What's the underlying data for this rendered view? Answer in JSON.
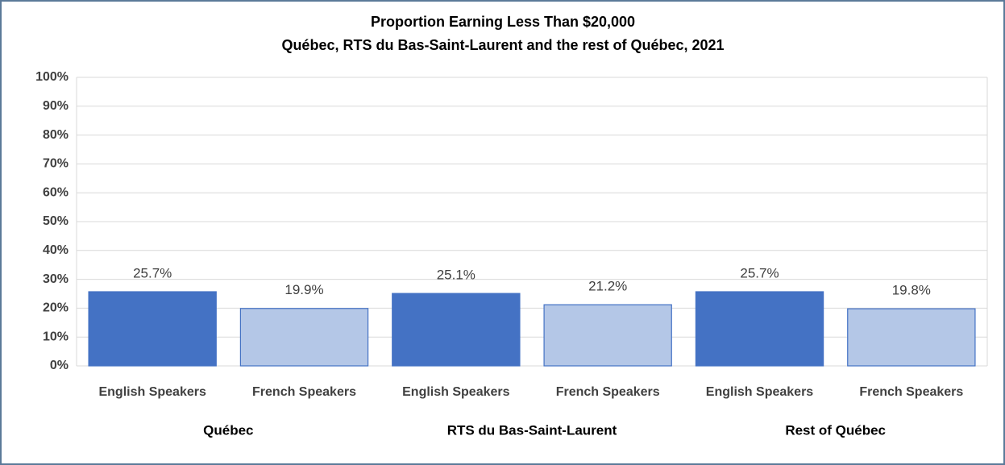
{
  "chart_data": {
    "type": "bar",
    "title": "Proportion Earning Less Than $20,000",
    "subtitle": "Québec, RTS du Bas-Saint-Laurent and the rest of Québec, 2021",
    "categories": [
      "English Speakers",
      "French Speakers",
      "English Speakers",
      "French Speakers",
      "English Speakers",
      "French Speakers"
    ],
    "groups": [
      "Québec",
      "RTS du Bas-Saint-Laurent",
      "Rest of Québec"
    ],
    "values": [
      25.7,
      19.9,
      25.1,
      21.2,
      25.7,
      19.8
    ],
    "value_labels": [
      "25.7%",
      "19.9%",
      "25.1%",
      "21.2%",
      "25.7%",
      "19.8%"
    ],
    "colors": [
      "#4472c4",
      "#b4c7e7",
      "#4472c4",
      "#b4c7e7",
      "#4472c4",
      "#b4c7e7"
    ],
    "ylim": [
      0,
      100
    ],
    "yticks": [
      {
        "value": 0,
        "label": "0%"
      },
      {
        "value": 10,
        "label": "10%"
      },
      {
        "value": 20,
        "label": "20%"
      },
      {
        "value": 30,
        "label": "30%"
      },
      {
        "value": 40,
        "label": "40%"
      },
      {
        "value": 50,
        "label": "50%"
      },
      {
        "value": 60,
        "label": "60%"
      },
      {
        "value": 70,
        "label": "70%"
      },
      {
        "value": 80,
        "label": "80%"
      },
      {
        "value": 90,
        "label": "90%"
      },
      {
        "value": 100,
        "label": "100%"
      }
    ],
    "grid": true
  }
}
